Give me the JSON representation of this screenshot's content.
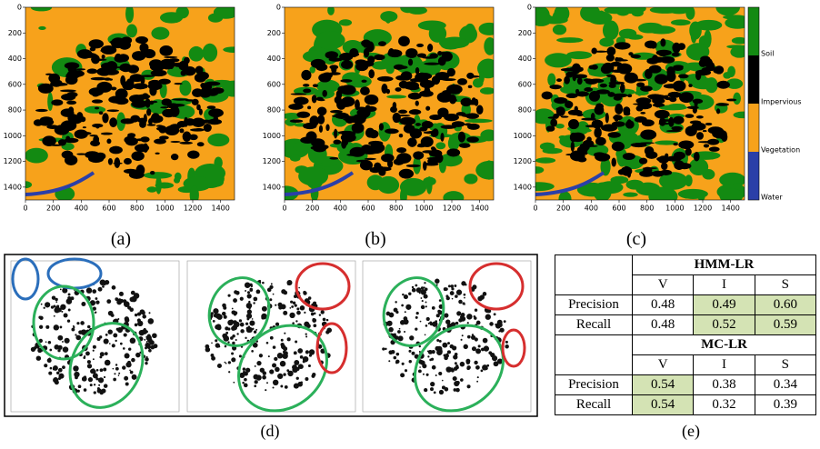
{
  "panels": [
    {
      "caption": "(a)"
    },
    {
      "caption": "(b)"
    },
    {
      "caption": "(c)"
    }
  ],
  "axes": {
    "xticks": [
      0,
      200,
      400,
      600,
      800,
      1000,
      1200,
      1400
    ],
    "yticks": [
      0,
      200,
      400,
      600,
      800,
      1000,
      1200,
      1400
    ]
  },
  "colorbar": {
    "labels": [
      "Soil",
      "Impervious",
      "Vegetation",
      "Water"
    ]
  },
  "figure_d": {
    "caption": "(d)"
  },
  "table": {
    "caption": "(e)",
    "groups": [
      {
        "title": "HMM-LR",
        "columns": [
          "V",
          "I",
          "S"
        ],
        "rows": [
          [
            "Precision",
            "0.48",
            "0.49",
            "0.60"
          ],
          [
            "Recall",
            "0.48",
            "0.52",
            "0.59"
          ]
        ]
      },
      {
        "title": "MC-LR",
        "columns": [
          "V",
          "I",
          "S"
        ],
        "rows": [
          [
            "Precision",
            "0.54",
            "0.38",
            "0.34"
          ],
          [
            "Recall",
            "0.54",
            "0.32",
            "0.39"
          ]
        ]
      }
    ]
  }
}
